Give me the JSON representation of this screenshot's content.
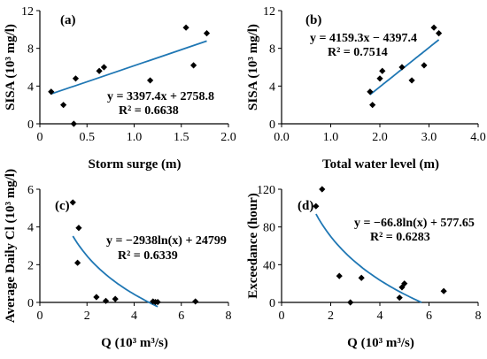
{
  "chart_data": [
    {
      "id": "a",
      "type": "scatter",
      "panel_label": "(a)",
      "xlabel": "Storm surge (m)",
      "ylabel": "SISA (10³ mg/l)",
      "xlim": [
        0,
        2.0
      ],
      "ylim": [
        0,
        12
      ],
      "xticks": [
        "0",
        "0.5",
        "1.0",
        "1.5",
        "2.0"
      ],
      "yticks": [
        "0",
        "4",
        "8",
        "12"
      ],
      "points": [
        [
          0.12,
          3.4
        ],
        [
          0.25,
          2.0
        ],
        [
          0.36,
          0.0
        ],
        [
          0.38,
          4.8
        ],
        [
          0.63,
          5.6
        ],
        [
          0.68,
          6.0
        ],
        [
          1.17,
          4.6
        ],
        [
          1.55,
          10.2
        ],
        [
          1.63,
          6.2
        ],
        [
          1.77,
          9.6
        ]
      ],
      "fit": {
        "kind": "linear",
        "a": 3397.4,
        "b": 2758.8,
        "x_range": [
          0.12,
          1.77
        ]
      },
      "equation": "y = 3397.4x + 2758.8",
      "r2": "R² = 0.6638"
    },
    {
      "id": "b",
      "type": "scatter",
      "panel_label": "(b)",
      "xlabel": "Total water level (m)",
      "ylabel": "SISA (10³ mg/l)",
      "xlim": [
        0,
        4.0
      ],
      "ylim": [
        0,
        12
      ],
      "xticks": [
        "0.0",
        "1.0",
        "2.0",
        "3.0",
        "4.0"
      ],
      "yticks": [
        "0",
        "4",
        "8",
        "12"
      ],
      "points": [
        [
          1.8,
          3.4
        ],
        [
          1.85,
          2.0
        ],
        [
          2.0,
          4.8
        ],
        [
          2.05,
          5.6
        ],
        [
          2.45,
          6.0
        ],
        [
          2.65,
          4.6
        ],
        [
          2.9,
          6.2
        ],
        [
          3.1,
          10.2
        ],
        [
          3.2,
          9.6
        ]
      ],
      "fit": {
        "kind": "linear",
        "a": 4159.3,
        "b": -4397.4,
        "x_range": [
          1.8,
          3.2
        ]
      },
      "equation": "y = 4159.3x − 4397.4",
      "r2": "R² = 0.7514"
    },
    {
      "id": "c",
      "type": "scatter",
      "panel_label": "(c)",
      "xlabel": "Q (10³ m³/s)",
      "ylabel": "Average Daily Cl (10³ mg/l)",
      "xlim": [
        0,
        8
      ],
      "ylim": [
        0,
        6
      ],
      "xticks": [
        "0",
        "2",
        "4",
        "6",
        "8"
      ],
      "yticks": [
        "0",
        "2",
        "4",
        "6"
      ],
      "points": [
        [
          1.4,
          5.3
        ],
        [
          1.65,
          3.95
        ],
        [
          1.6,
          2.1
        ],
        [
          2.4,
          0.28
        ],
        [
          2.8,
          0.08
        ],
        [
          3.2,
          0.18
        ],
        [
          4.8,
          0.05
        ],
        [
          4.9,
          0.02
        ],
        [
          5.0,
          0.02
        ],
        [
          6.6,
          0.05
        ]
      ],
      "fit": {
        "kind": "log",
        "a": -2938,
        "b": 24799,
        "x_range": [
          1.4,
          5.0
        ]
      },
      "equation": "y = −2938ln(x) + 24799",
      "r2": "R² = 0.6339"
    },
    {
      "id": "d",
      "type": "scatter",
      "panel_label": "(d)",
      "xlabel": "Q (10³ m³/s)",
      "ylabel": "Exceedance (hour)",
      "xlim": [
        0,
        8
      ],
      "ylim": [
        0,
        120
      ],
      "xticks": [
        "0",
        "2",
        "4",
        "6",
        "8"
      ],
      "yticks": [
        "0",
        "40",
        "80",
        "120"
      ],
      "points": [
        [
          1.4,
          102
        ],
        [
          1.65,
          120
        ],
        [
          2.35,
          28
        ],
        [
          2.8,
          0
        ],
        [
          3.25,
          26
        ],
        [
          4.8,
          5
        ],
        [
          4.9,
          16
        ],
        [
          5.0,
          20
        ],
        [
          6.6,
          12
        ]
      ],
      "fit": {
        "kind": "log",
        "a": -66.8,
        "b": 577.65,
        "x_range": [
          1.4,
          5.7
        ]
      },
      "equation": "y = −66.8ln(x) + 577.65",
      "r2": "R² = 0.6283"
    }
  ]
}
